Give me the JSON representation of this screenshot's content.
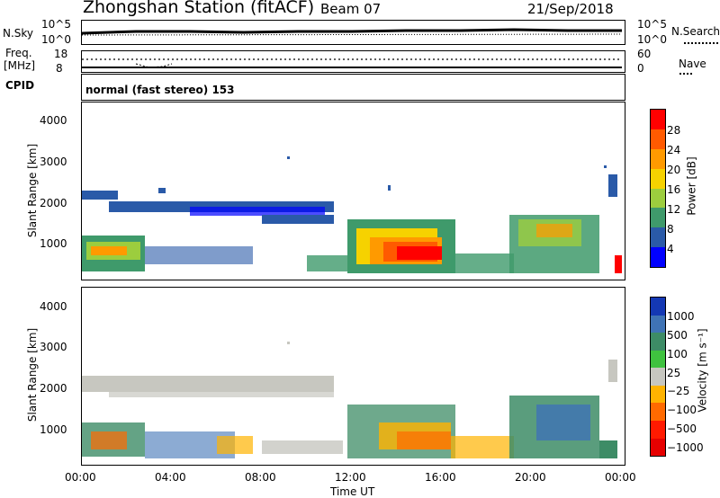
{
  "header": {
    "station": "Zhongshan Station (fitACF)",
    "beam": "Beam 07",
    "date": "21/Sep/2018"
  },
  "nsky": {
    "label": "N.Sky",
    "top": "10^5",
    "bottom": "10^0",
    "right_top": "10^5",
    "right_bottom": "10^0",
    "right_label": "N.Search"
  },
  "freq": {
    "label_line1": "Freq.",
    "label_line2": "[MHz]",
    "top": "18",
    "bottom": "8",
    "right_top": "60",
    "right_bottom": "0",
    "right_label": "Nave"
  },
  "cpid": {
    "label": "CPID",
    "value": "normal (fast stereo) 153"
  },
  "power_panel": {
    "ylabel": "Slant Range [km]",
    "yticks": [
      "4000",
      "3000",
      "2000",
      "1000"
    ],
    "colorbar_label": "Power [dB]",
    "colorbar_ticks": [
      "28",
      "24",
      "20",
      "16",
      "12",
      "8",
      "4"
    ],
    "colors": [
      "#ff0000",
      "#ff5a00",
      "#ff9a00",
      "#f6d200",
      "#9ccd3e",
      "#3f9a6b",
      "#2a5aa8",
      "#0000ff"
    ]
  },
  "velocity_panel": {
    "ylabel": "Slant Range [km]",
    "yticks": [
      "4000",
      "3000",
      "2000",
      "1000"
    ],
    "colorbar_label": "Velocity [m s⁻¹]",
    "colorbar_ticks": [
      "1000",
      "500",
      "100",
      "25",
      "−25",
      "−100",
      "−500",
      "−1000"
    ],
    "colors": [
      "#1438b4",
      "#3f73b5",
      "#3d8c66",
      "#3fc23f",
      "#c7c7c0",
      "#ffb300",
      "#ff6a00",
      "#ff1a00",
      "#e60000"
    ]
  },
  "xaxis": {
    "label": "Time UT",
    "ticks": [
      "00:00",
      "04:00",
      "08:00",
      "12:00",
      "16:00",
      "20:00",
      "00:00"
    ]
  }
}
